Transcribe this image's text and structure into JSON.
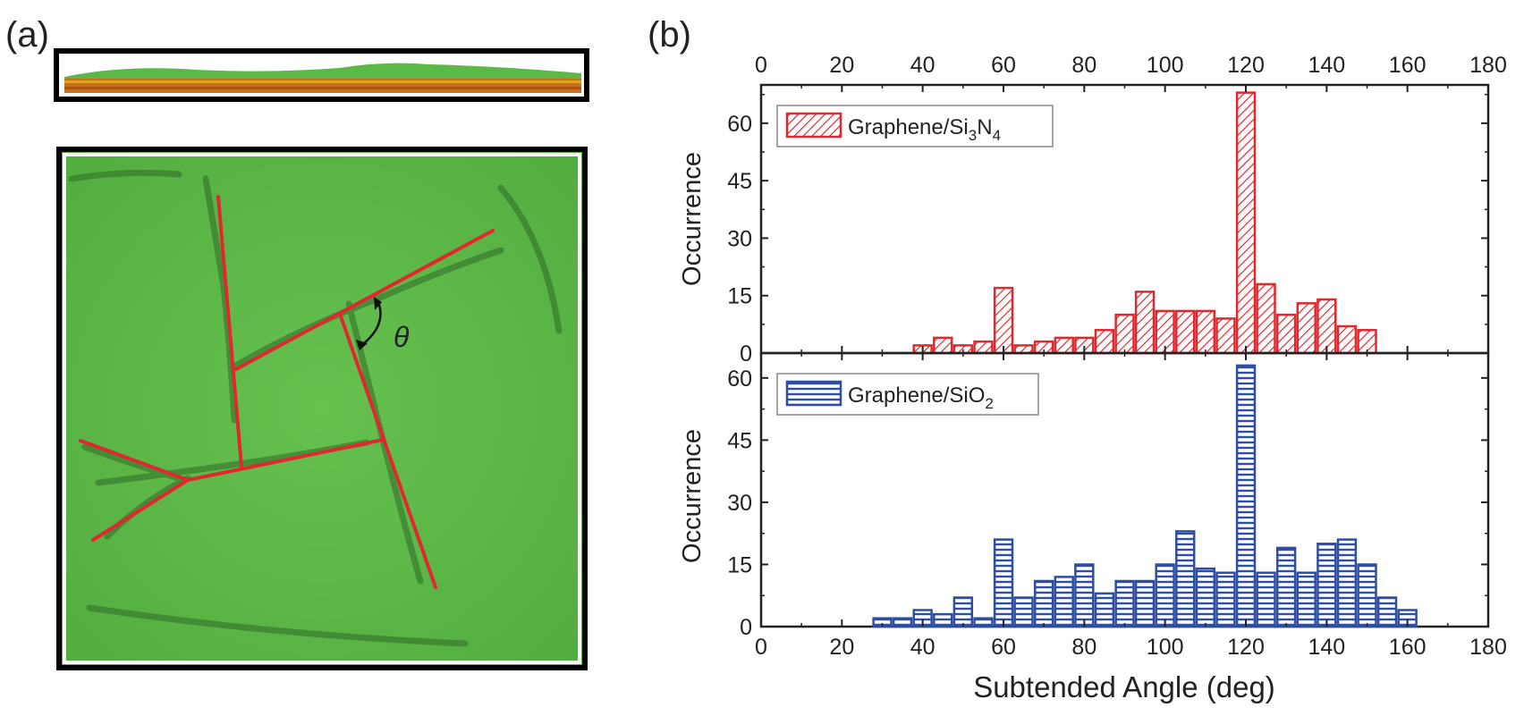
{
  "panel_a": {
    "label": "(a)",
    "angle_symbol": "θ"
  },
  "panel_b": {
    "label": "(b)"
  },
  "colors": {
    "red": "#e0282e",
    "blue": "#2e4ea3",
    "green": "#5cb847",
    "axis": "#222222"
  },
  "chart_data": [
    {
      "type": "bar",
      "name": "top-histogram",
      "legend": "Graphene/Si3N4",
      "legend_parts": {
        "base": "Graphene/Si",
        "sub1": "3",
        "mid": "N",
        "sub2": "4"
      },
      "ylabel": "Occurrence",
      "xlabel": "",
      "xlim": [
        0,
        180
      ],
      "ylim": [
        0,
        70
      ],
      "xticks": [
        0,
        20,
        40,
        60,
        80,
        100,
        120,
        140,
        160,
        180
      ],
      "yticks": [
        0,
        15,
        30,
        45,
        60
      ],
      "xtick_labels": [
        "0",
        "20",
        "40",
        "60",
        "80",
        "100",
        "120",
        "140",
        "160",
        "180"
      ],
      "ytick_labels": [
        "0",
        "15",
        "30",
        "45",
        "60"
      ],
      "bin_width": 5,
      "x": [
        40,
        45,
        50,
        55,
        60,
        65,
        70,
        75,
        80,
        85,
        90,
        95,
        100,
        105,
        110,
        115,
        120,
        125,
        130,
        135,
        140,
        145,
        150
      ],
      "values": [
        2,
        4,
        2,
        3,
        17,
        2,
        3,
        4,
        4,
        6,
        10,
        16,
        11,
        11,
        11,
        9,
        68,
        18,
        10,
        13,
        14,
        7,
        6
      ],
      "pattern": "diagonal-hatch"
    },
    {
      "type": "bar",
      "name": "bottom-histogram",
      "legend": "Graphene/SiO2",
      "legend_parts": {
        "base": "Graphene/SiO",
        "sub1": "2"
      },
      "ylabel": "Occurrence",
      "xlabel": "Subtended Angle (deg)",
      "xlim": [
        0,
        180
      ],
      "ylim": [
        0,
        66
      ],
      "xticks": [
        0,
        20,
        40,
        60,
        80,
        100,
        120,
        140,
        160,
        180
      ],
      "yticks": [
        0,
        15,
        30,
        45,
        60
      ],
      "xtick_labels": [
        "0",
        "20",
        "40",
        "60",
        "80",
        "100",
        "120",
        "140",
        "160",
        "180"
      ],
      "ytick_labels": [
        "0",
        "15",
        "30",
        "45",
        "60"
      ],
      "bin_width": 5,
      "x": [
        30,
        35,
        40,
        45,
        50,
        55,
        60,
        65,
        70,
        75,
        80,
        85,
        90,
        95,
        100,
        105,
        110,
        115,
        120,
        125,
        130,
        135,
        140,
        145,
        150,
        155,
        160
      ],
      "values": [
        2,
        2,
        4,
        3,
        7,
        2,
        21,
        7,
        11,
        12,
        15,
        8,
        11,
        11,
        15,
        23,
        14,
        13,
        63,
        13,
        19,
        13,
        20,
        21,
        15,
        7,
        4
      ],
      "pattern": "horizontal-hatch"
    }
  ]
}
